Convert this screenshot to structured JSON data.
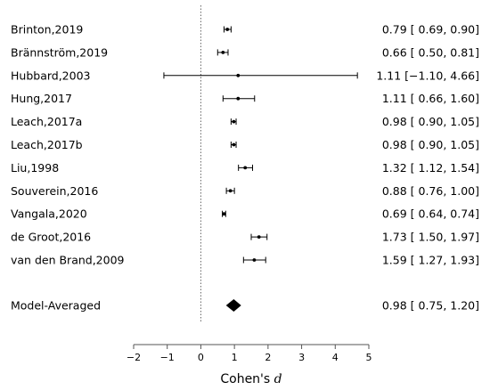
{
  "chart_data": {
    "type": "forest",
    "xlabel": "Cohen's",
    "xlabel_symbol": "d",
    "xlim": [
      -2,
      5
    ],
    "xticks": [
      -2,
      -1,
      0,
      1,
      2,
      3,
      4,
      5
    ],
    "xtick_labels": [
      "−2",
      "−1",
      "0",
      "1",
      "2",
      "3",
      "4",
      "5"
    ],
    "reference_line": 0,
    "studies": [
      {
        "name": "Brinton,2019",
        "estimate": 0.79,
        "lower": 0.69,
        "upper": 0.9,
        "ci_text": "0.79 [ 0.69, 0.90]"
      },
      {
        "name": "Brännström,2019",
        "estimate": 0.66,
        "lower": 0.5,
        "upper": 0.81,
        "ci_text": "0.66 [ 0.50, 0.81]"
      },
      {
        "name": "Hubbard,2003",
        "estimate": 1.11,
        "lower": -1.1,
        "upper": 4.66,
        "ci_text": "1.11 [−1.10, 4.66]"
      },
      {
        "name": "Hung,2017",
        "estimate": 1.11,
        "lower": 0.66,
        "upper": 1.6,
        "ci_text": "1.11 [ 0.66, 1.60]"
      },
      {
        "name": "Leach,2017a",
        "estimate": 0.98,
        "lower": 0.9,
        "upper": 1.05,
        "ci_text": "0.98 [ 0.90, 1.05]"
      },
      {
        "name": "Leach,2017b",
        "estimate": 0.98,
        "lower": 0.9,
        "upper": 1.05,
        "ci_text": "0.98 [ 0.90, 1.05]"
      },
      {
        "name": "Liu,1998",
        "estimate": 1.32,
        "lower": 1.12,
        "upper": 1.54,
        "ci_text": "1.32 [ 1.12, 1.54]"
      },
      {
        "name": "Souverein,2016",
        "estimate": 0.88,
        "lower": 0.76,
        "upper": 1.0,
        "ci_text": "0.88 [ 0.76, 1.00]"
      },
      {
        "name": "Vangala,2020",
        "estimate": 0.69,
        "lower": 0.64,
        "upper": 0.74,
        "ci_text": "0.69 [ 0.64, 0.74]"
      },
      {
        "name": "de Groot,2016",
        "estimate": 1.73,
        "lower": 1.5,
        "upper": 1.97,
        "ci_text": "1.73 [ 1.50, 1.97]"
      },
      {
        "name": "van den Brand,2009",
        "estimate": 1.59,
        "lower": 1.27,
        "upper": 1.93,
        "ci_text": "1.59 [ 1.27, 1.93]"
      }
    ],
    "summary": {
      "name": "Model-Averaged",
      "estimate": 0.98,
      "lower": 0.75,
      "upper": 1.2,
      "ci_text": "0.98 [ 0.75, 1.20]"
    }
  }
}
